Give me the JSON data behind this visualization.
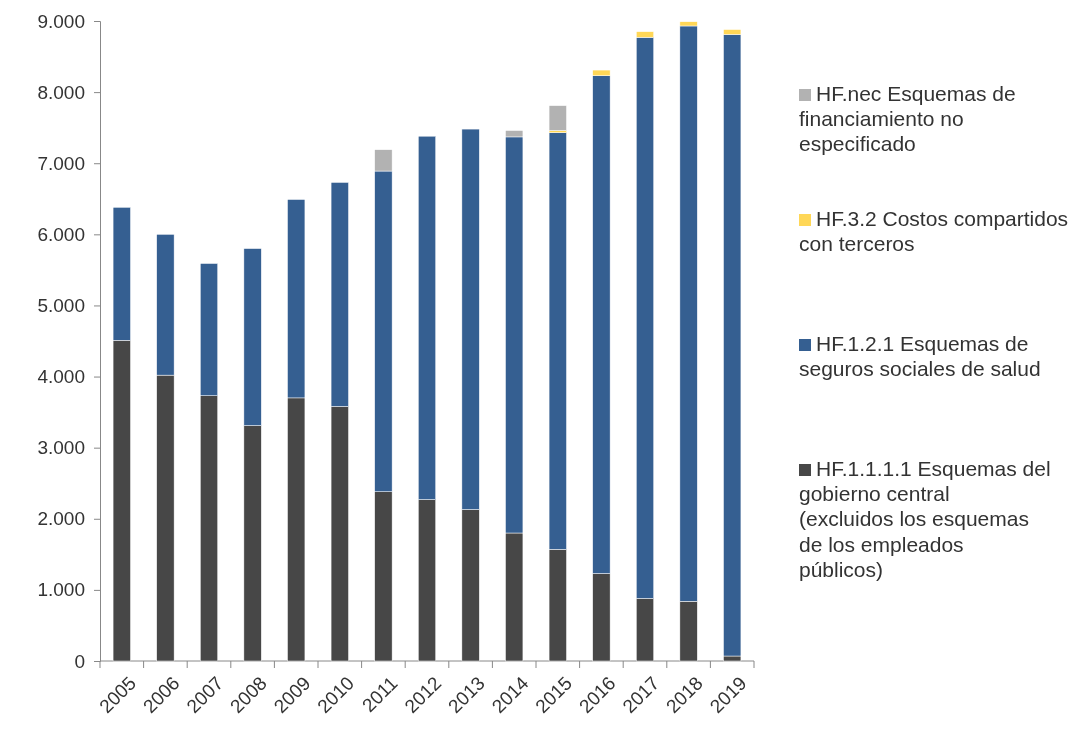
{
  "chart_data": {
    "type": "bar",
    "stacked": true,
    "legend": "right",
    "categories": [
      "2005",
      "2006",
      "2007",
      "2008",
      "2009",
      "2010",
      "2011",
      "2012",
      "2013",
      "2014",
      "2015",
      "2016",
      "2017",
      "2018",
      "2019"
    ],
    "ylim": [
      0,
      9000
    ],
    "yticks": [
      {
        "value": 0,
        "label": "0"
      },
      {
        "value": 1000,
        "label": "1.000"
      },
      {
        "value": 2000,
        "label": "2.000"
      },
      {
        "value": 3000,
        "label": "3.000"
      },
      {
        "value": 4000,
        "label": "4.000"
      },
      {
        "value": 5000,
        "label": "5.000"
      },
      {
        "value": 6000,
        "label": "6.000"
      },
      {
        "value": 7000,
        "label": "7.000"
      },
      {
        "value": 8000,
        "label": "8.000"
      },
      {
        "value": 9000,
        "label": "9.000"
      }
    ],
    "series": [
      {
        "name": "HF.1.1.1.1 Esquemas del gobierno central (excluidos los esquemas de los empleados públicos)",
        "color": "#474747",
        "values": [
          4510,
          4020,
          3730,
          3310,
          3700,
          3580,
          2380,
          2270,
          2130,
          1800,
          1570,
          1230,
          880,
          840,
          70
        ]
      },
      {
        "name": "HF.1.2.1 Esquemas de seguros sociales de salud",
        "color": "#355f91",
        "values": [
          1870,
          1980,
          1860,
          2490,
          2790,
          3150,
          4510,
          5110,
          5350,
          5570,
          5860,
          7000,
          7890,
          8090,
          8740
        ]
      },
      {
        "name": "HF.3.2 Costos compartidos con terceros",
        "color": "#ffd757",
        "values": [
          0,
          0,
          0,
          0,
          0,
          0,
          0,
          0,
          0,
          0,
          30,
          80,
          80,
          60,
          70
        ]
      },
      {
        "name": "HF.nec Esquemas de financiamiento no especificado",
        "color": "#b2b2b2",
        "values": [
          0,
          0,
          0,
          0,
          0,
          0,
          300,
          0,
          0,
          90,
          350,
          0,
          0,
          0,
          0
        ]
      }
    ]
  }
}
